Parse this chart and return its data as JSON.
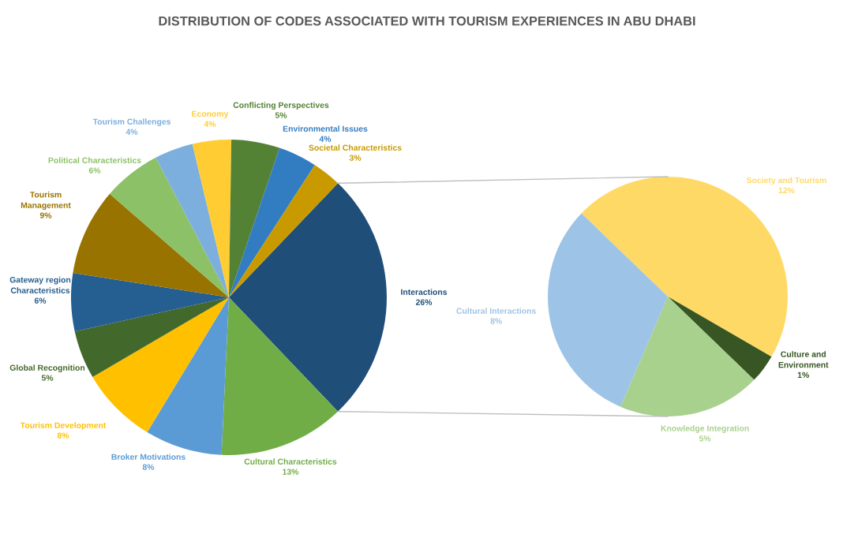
{
  "chart_data": [
    {
      "type": "pie",
      "title": "DISTRIBUTION OF CODES ASSOCIATED WITH TOURISM EXPERIENCES IN ABU DHABI",
      "categories": [
        "Interactions",
        "Cultural Characteristics",
        "Broker Motivations",
        "Tourism Development",
        "Global Recognition",
        "Gateway region\nCharacteristics",
        "Tourism\nManagement",
        "Political Characteristics",
        "Tourism Challenges",
        "Economy",
        "Conflicting Perspectives",
        "Environmental Issues",
        "Societal Characteristics"
      ],
      "values": [
        26,
        13,
        8,
        8,
        5,
        6,
        9,
        6,
        4,
        4,
        5,
        4,
        3
      ],
      "value_labels": [
        "26%",
        "13%",
        "8%",
        "8%",
        "5%",
        "6%",
        "9%",
        "6%",
        "4%",
        "4%",
        "5%",
        "4%",
        "3%"
      ],
      "colors": [
        "#1f4e79",
        "#70ad47",
        "#5b9bd5",
        "#ffc000",
        "#43682b",
        "#255e91",
        "#997300",
        "#8cc168",
        "#7cafdd",
        "#ffcd33",
        "#548235",
        "#327dc2",
        "#c89a00"
      ]
    },
    {
      "type": "pie",
      "categories": [
        "Society and Tourism",
        "Culture and\nEnvironment",
        "Knowledge Integration",
        "Cultural Interactions"
      ],
      "values": [
        12,
        1,
        5,
        8
      ],
      "value_labels": [
        "12%",
        "1%",
        "5%",
        "8%"
      ],
      "colors": [
        "#ffd966",
        "#375623",
        "#a9d18e",
        "#9dc3e6"
      ]
    }
  ]
}
